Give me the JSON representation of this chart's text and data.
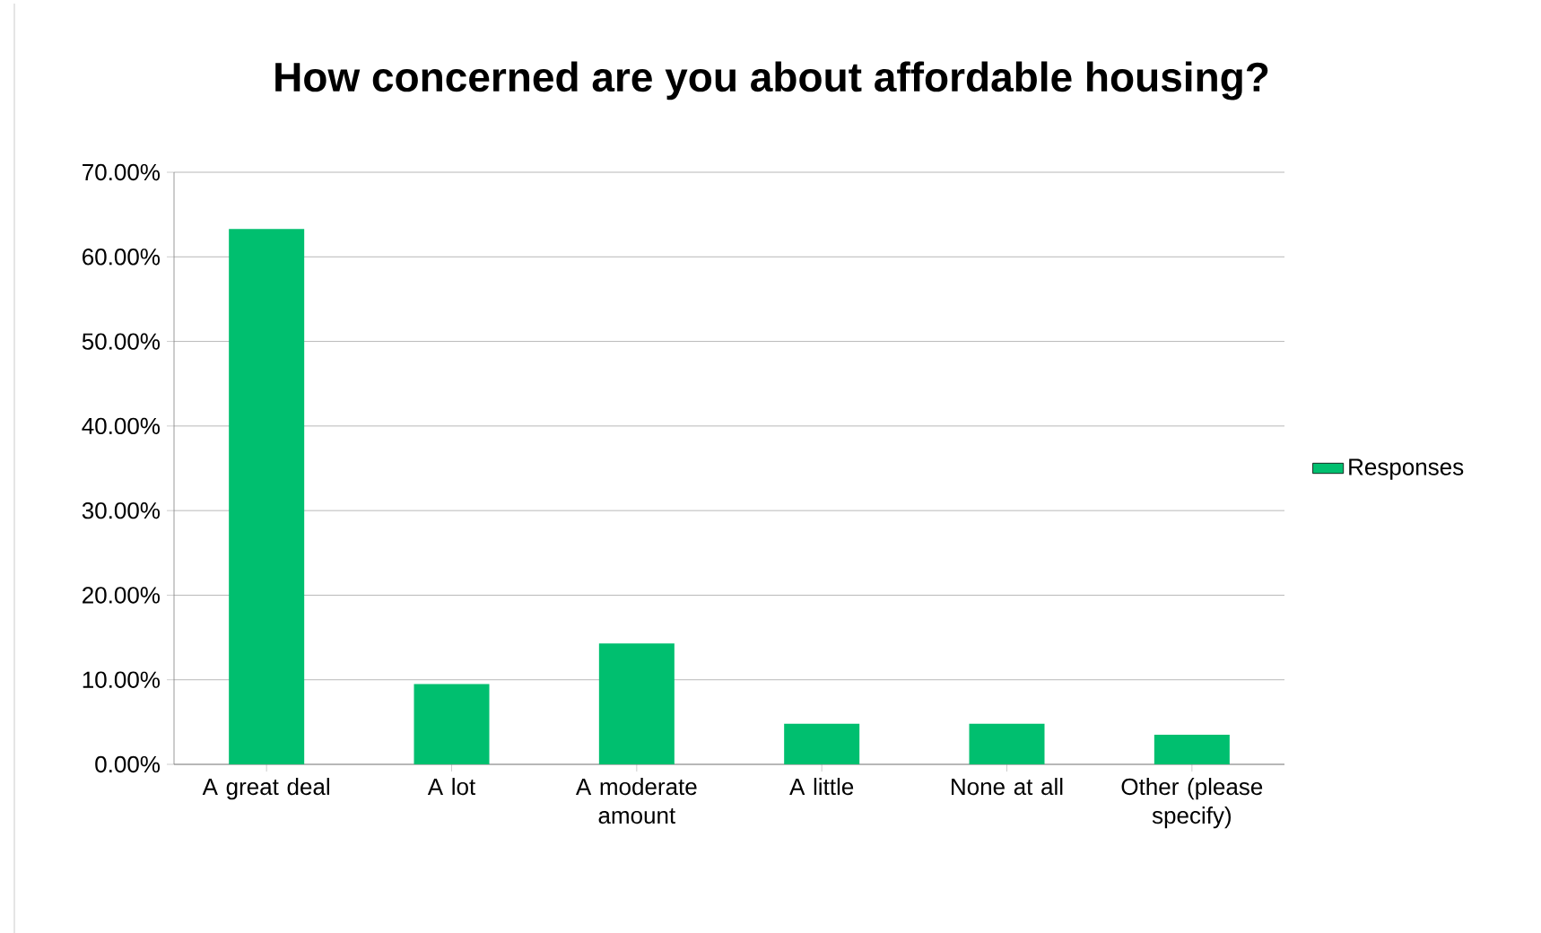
{
  "chart_data": {
    "type": "bar",
    "title": "How concerned are you about affordable housing?",
    "categories": [
      "A great deal",
      "A lot",
      "A moderate amount",
      "A little",
      "None at all",
      "Other (please specify)"
    ],
    "series": [
      {
        "name": "Responses",
        "color": "#00bf6f",
        "values": [
          63.3,
          9.5,
          14.3,
          4.8,
          4.8,
          3.5
        ]
      }
    ],
    "ylim": [
      0,
      70
    ],
    "yticks": [
      {
        "value": 0,
        "label": "0.00%"
      },
      {
        "value": 10,
        "label": "10.00%"
      },
      {
        "value": 20,
        "label": "20.00%"
      },
      {
        "value": 30,
        "label": "30.00%"
      },
      {
        "value": 40,
        "label": "40.00%"
      },
      {
        "value": 50,
        "label": "50.00%"
      },
      {
        "value": 60,
        "label": "60.00%"
      },
      {
        "value": 70,
        "label": "70.00%"
      }
    ],
    "grid": "y",
    "legend": "right"
  }
}
